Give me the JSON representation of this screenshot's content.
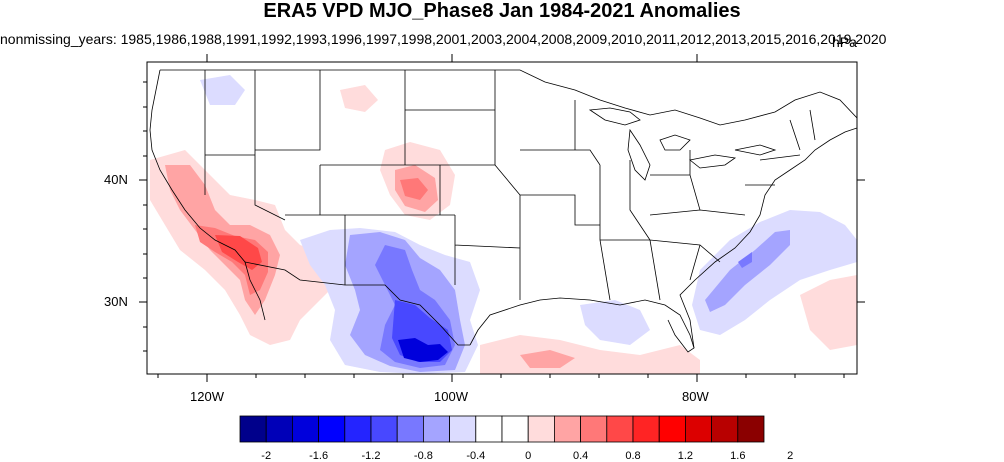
{
  "title": "ERA5 VPD MJO_Phase8 Jan 1984-2021 Anomalies",
  "subtitle": "nonmissing_years: 1985,1986,1988,1991,1992,1993,1996,1997,1998,2001,2003,2004,2008,2009,2010,2011,2012,2013,2015,2016,2019,2020",
  "units": "hPa",
  "axes": {
    "lon_ticks": [
      "120W",
      "100W",
      "80W"
    ],
    "lat_ticks": [
      "40N",
      "30N"
    ]
  },
  "colorbar": {
    "labels": [
      "-2",
      "-1.6",
      "-1.2",
      "-0.8",
      "-0.4",
      "0",
      "0.4",
      "0.8",
      "1.2",
      "1.6",
      "2"
    ],
    "colors": [
      "#00008b",
      "#0000b8",
      "#0000dc",
      "#0000ff",
      "#2424ff",
      "#4848ff",
      "#7878ff",
      "#a4a4ff",
      "#dcdcff",
      "#ffffff",
      "#ffffff",
      "#ffdcdc",
      "#ffa4a4",
      "#ff7878",
      "#ff4848",
      "#ff2424",
      "#ff0000",
      "#dc0000",
      "#b80000",
      "#8b0000"
    ]
  },
  "anomaly_colors": {
    "red_light": "#ffdcdc",
    "red_mid": "#ffa4a4",
    "red_strong": "#ff7878",
    "red_deep": "#ff4848",
    "blue_light": "#dcdcff",
    "blue_mid": "#a4a4ff",
    "blue_strong": "#7878ff",
    "blue_deep": "#4848ff",
    "blue_darkest": "#0000dc"
  }
}
